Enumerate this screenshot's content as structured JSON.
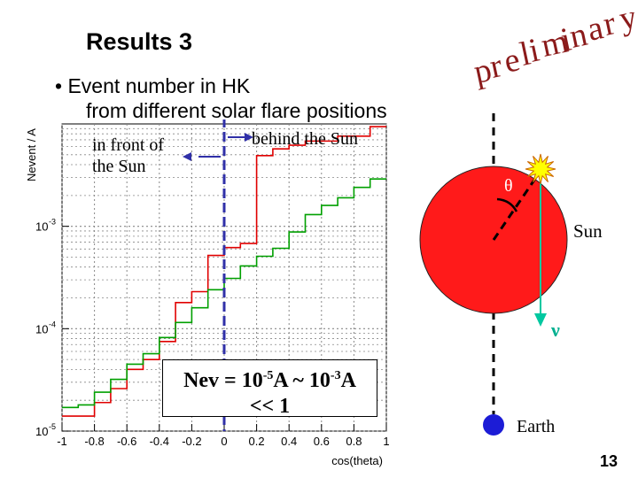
{
  "slide": {
    "title": "Results 3",
    "bullet_line1": "• Event number in HK",
    "bullet_line2": "from different solar flare positions",
    "preliminary_letters": [
      "p",
      "r",
      "e",
      "l",
      "i",
      "m",
      "i",
      "n",
      "a",
      "r",
      "y"
    ],
    "label_front_line1": "in front of",
    "label_front_line2": "the Sun",
    "label_behind": "behind the Sun",
    "nev_part1": "Nev = 10",
    "nev_exp1": "-5",
    "nev_part2": "A ~ 10",
    "nev_exp2": "-3",
    "nev_part3": "A",
    "nev_line2": "<< 1",
    "page_number": "13"
  },
  "diagram": {
    "theta": "θ",
    "sun_label": "Sun",
    "nu_label": "ν",
    "earth_label": "Earth",
    "sun_color": "#ff1a1a",
    "earth_color": "#1c1cd6",
    "neutrino_color": "#00c8a0",
    "flare_color": "#ffff00"
  },
  "chart_data": {
    "type": "line",
    "ylabel": "Nevent / A",
    "xlabel": "cos(theta)",
    "xlim": [
      -1,
      1
    ],
    "ylim": [
      1e-05,
      0.01
    ],
    "yscale": "log",
    "x_ticks": [
      "-1",
      "-0.8",
      "-0.6",
      "-0.4",
      "-0.2",
      "0",
      "0.2",
      "0.4",
      "0.6",
      "0.8",
      "1"
    ],
    "y_ticks": [
      "10",
      "10",
      "10"
    ],
    "y_tick_exponents": [
      "-5",
      "-4",
      "-3"
    ],
    "grid": true,
    "bin_edges": [
      -1.0,
      -0.9,
      -0.8,
      -0.7,
      -0.6,
      -0.5,
      -0.4,
      -0.3,
      -0.2,
      -0.1,
      0.0,
      0.1,
      0.2,
      0.3,
      0.4,
      0.5,
      0.6,
      0.7,
      0.8,
      0.9,
      1.0
    ],
    "series": [
      {
        "color": "#e00000",
        "values": [
          1.4e-05,
          1.4e-05,
          1.9e-05,
          2.6e-05,
          4e-05,
          5e-05,
          7.5e-05,
          0.00018,
          0.00023,
          0.00052,
          0.00062,
          0.00068,
          0.0049,
          0.0057,
          0.0062,
          0.0068,
          0.0068,
          0.0076,
          0.0076,
          0.0094
        ]
      },
      {
        "color": "#00a000",
        "values": [
          1.7e-05,
          1.8e-05,
          2.4e-05,
          3.2e-05,
          4.5e-05,
          5.7e-05,
          8.2e-05,
          0.000115,
          0.00016,
          0.00024,
          0.00031,
          0.00041,
          0.00051,
          0.00061,
          0.00088,
          0.0013,
          0.0016,
          0.0019,
          0.0024,
          0.0029
        ]
      }
    ],
    "marker_cos_theta": 0.0
  }
}
